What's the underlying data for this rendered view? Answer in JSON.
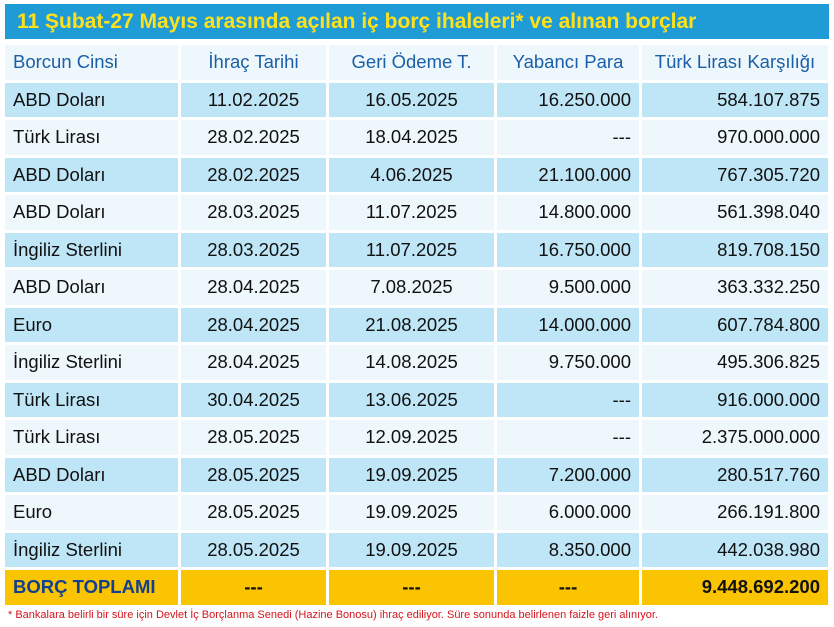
{
  "title": "11 Şubat-27 Mayıs arasında açılan iç borç ihaleleri* ve alınan borçlar",
  "headers": [
    "Borcun Cinsi",
    "İhraç Tarihi",
    "Geri Ödeme T.",
    "Yabancı Para",
    "Türk Lirası Karşılığı"
  ],
  "rows": [
    [
      "ABD Doları",
      "11.02.2025",
      "16.05.2025",
      "16.250.000",
      "584.107.875"
    ],
    [
      "Türk Lirası",
      "28.02.2025",
      "18.04.2025",
      "---",
      "970.000.000"
    ],
    [
      "ABD Doları",
      "28.02.2025",
      "4.06.2025",
      "21.100.000",
      "767.305.720"
    ],
    [
      "ABD Doları",
      "28.03.2025",
      "11.07.2025",
      "14.800.000",
      "561.398.040"
    ],
    [
      "İngiliz Sterlini",
      "28.03.2025",
      "11.07.2025",
      "16.750.000",
      "819.708.150"
    ],
    [
      "ABD Doları",
      "28.04.2025",
      "7.08.2025",
      "9.500.000",
      "363.332.250"
    ],
    [
      "Euro",
      "28.04.2025",
      "21.08.2025",
      "14.000.000",
      "607.784.800"
    ],
    [
      "İngiliz Sterlini",
      "28.04.2025",
      "14.08.2025",
      "9.750.000",
      "495.306.825"
    ],
    [
      "Türk Lirası",
      "30.04.2025",
      "13.06.2025",
      "---",
      "916.000.000"
    ],
    [
      "Türk Lirası",
      "28.05.2025",
      "12.09.2025",
      "---",
      "2.375.000.000"
    ],
    [
      "ABD Doları",
      "28.05.2025",
      "19.09.2025",
      "7.200.000",
      "280.517.760"
    ],
    [
      "Euro",
      "28.05.2025",
      "19.09.2025",
      "6.000.000",
      "266.191.800"
    ],
    [
      "İngiliz Sterlini",
      "28.05.2025",
      "19.09.2025",
      "8.350.000",
      "442.038.980"
    ]
  ],
  "total": [
    "BORÇ TOPLAMI",
    "---",
    "---",
    "---",
    "9.448.692.200"
  ],
  "footnote": "* Bankalara belirli bir süre için Devlet İç Borçlanma Senedi (Hazine Bonosu) ihraç ediliyor. Süre sonunda belirlenen faizle geri alınıyor.",
  "colors": {
    "title_bg": "#1f9bd6",
    "title_text": "#ffe11a",
    "header_text": "#1a5fa8",
    "row_dark": "#bfe6f7",
    "row_light": "#eef7fb",
    "total_bg": "#fbc400",
    "footnote_text": "#d4141c"
  }
}
